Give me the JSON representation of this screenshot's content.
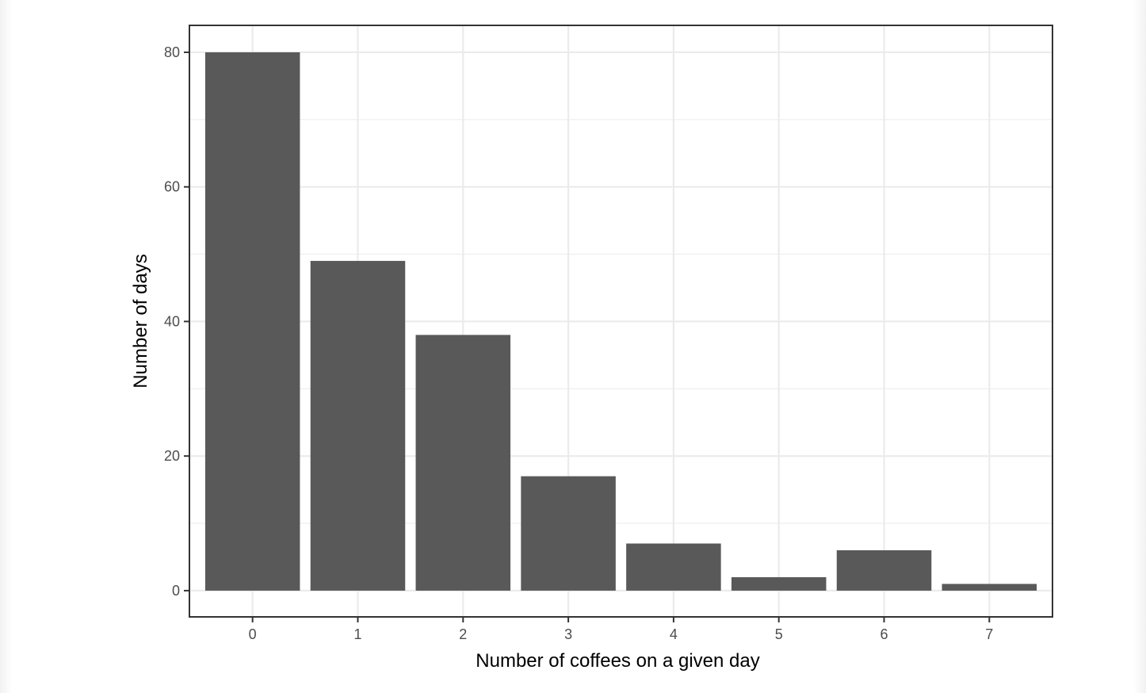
{
  "chart_data": {
    "type": "bar",
    "categories": [
      "0",
      "1",
      "2",
      "3",
      "4",
      "5",
      "6",
      "7"
    ],
    "values": [
      80,
      49,
      38,
      17,
      7,
      2,
      6,
      1
    ],
    "title": "",
    "xlabel": "Number of coffees on a given day",
    "ylabel": "Number of days",
    "ylim": [
      -3.9,
      84
    ],
    "yticks": [
      0,
      20,
      40,
      60,
      80
    ],
    "grid": true,
    "bar_color": "#595959",
    "grid_color": "#ebebeb",
    "panel_border_color": "#333333"
  }
}
